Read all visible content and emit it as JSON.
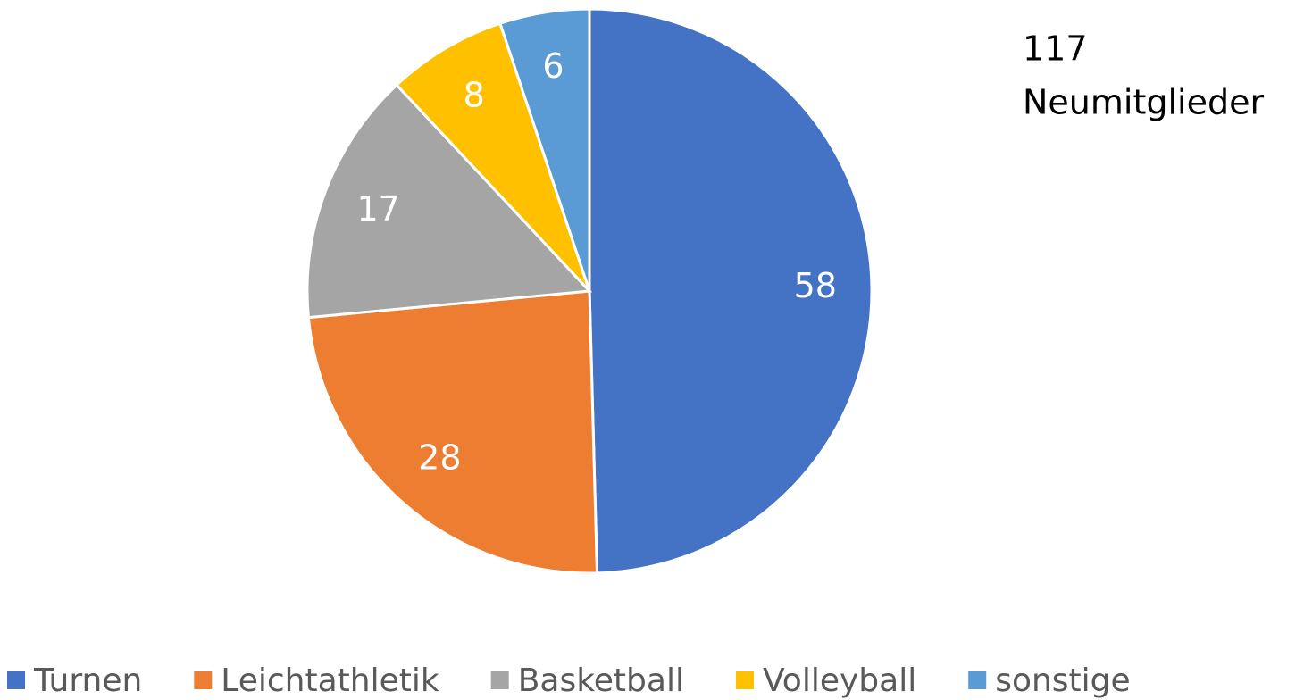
{
  "chart_data": {
    "type": "pie",
    "categories": [
      "Turnen",
      "Leichtathletik",
      "Basketball",
      "Volleyball",
      "sonstige"
    ],
    "values": [
      58,
      28,
      17,
      8,
      6
    ],
    "colors": [
      "#4472c4",
      "#ed7d31",
      "#a5a5a5",
      "#ffc000",
      "#5b9bd5"
    ],
    "annotation": [
      "117",
      "Neumitglieder"
    ],
    "legend": "bottom"
  }
}
